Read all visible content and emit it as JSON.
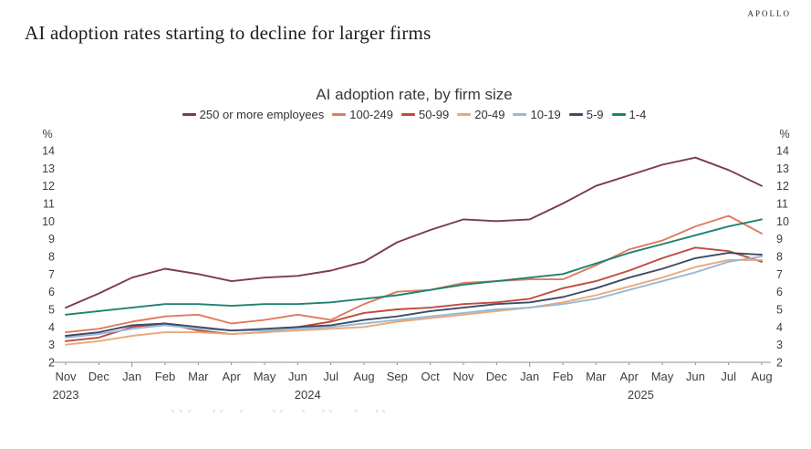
{
  "header": {
    "brand": "APOLLO",
    "title": "AI adoption rates starting to decline for larger firms"
  },
  "chart_data": {
    "type": "line",
    "title": "AI adoption rate, by firm size",
    "y_unit": "%",
    "ylim": [
      2,
      14
    ],
    "y_ticks": [
      14,
      13,
      12,
      11,
      10,
      9,
      8,
      7,
      6,
      5,
      4,
      3,
      2
    ],
    "grid": false,
    "legend_position": "top",
    "axis_color": "#909090",
    "text_color": "#3d3d3d",
    "x_tick_labels": [
      "Nov",
      "Dec",
      "Jan",
      "Feb",
      "Mar",
      "Apr",
      "May",
      "Jun",
      "Jul",
      "Aug",
      "Sep",
      "Oct",
      "Nov",
      "Dec",
      "Jan",
      "Feb",
      "Mar",
      "Apr",
      "May",
      "Jun",
      "Jul",
      "Aug"
    ],
    "year_labels": [
      {
        "label": "2023",
        "month_index": 0
      },
      {
        "label": "2024",
        "month_index": 7.3
      },
      {
        "label": "2025",
        "month_index": 17.35
      }
    ],
    "series": [
      {
        "name": "250 or more employees",
        "color": "#7a3b4f",
        "values": [
          5.1,
          5.9,
          6.8,
          7.3,
          7.0,
          6.6,
          6.8,
          6.9,
          7.2,
          7.7,
          8.8,
          9.5,
          10.1,
          10.0,
          10.1,
          11.0,
          12.0,
          12.6,
          13.2,
          13.6,
          12.9,
          12.0
        ]
      },
      {
        "name": "100-249",
        "color": "#e07b5d",
        "values": [
          3.7,
          3.9,
          4.3,
          4.6,
          4.7,
          4.2,
          4.4,
          4.7,
          4.4,
          5.3,
          6.0,
          6.1,
          6.5,
          6.6,
          6.7,
          6.7,
          7.5,
          8.4,
          8.9,
          9.7,
          10.3,
          9.3
        ]
      },
      {
        "name": "50-99",
        "color": "#c14a3d",
        "values": [
          3.2,
          3.4,
          4.0,
          4.2,
          3.8,
          3.6,
          3.7,
          4.0,
          4.3,
          4.8,
          5.0,
          5.1,
          5.3,
          5.4,
          5.6,
          6.2,
          6.6,
          7.2,
          7.9,
          8.5,
          8.3,
          7.7
        ]
      },
      {
        "name": "20-49",
        "color": "#e9a978",
        "values": [
          3.0,
          3.2,
          3.5,
          3.7,
          3.7,
          3.6,
          3.7,
          3.8,
          3.9,
          4.0,
          4.3,
          4.5,
          4.7,
          4.9,
          5.1,
          5.4,
          5.8,
          6.3,
          6.8,
          7.4,
          7.8,
          7.8
        ]
      },
      {
        "name": "10-19",
        "color": "#96b9d9",
        "values": [
          3.4,
          3.6,
          3.9,
          4.1,
          3.9,
          3.8,
          3.8,
          3.9,
          4.0,
          4.2,
          4.4,
          4.6,
          4.8,
          5.0,
          5.1,
          5.3,
          5.6,
          6.1,
          6.6,
          7.1,
          7.7,
          8.0
        ]
      },
      {
        "name": "5-9",
        "color": "#3c4c64",
        "values": [
          3.5,
          3.7,
          4.1,
          4.2,
          4.0,
          3.8,
          3.9,
          4.0,
          4.1,
          4.4,
          4.6,
          4.9,
          5.1,
          5.3,
          5.4,
          5.7,
          6.2,
          6.8,
          7.3,
          7.9,
          8.2,
          8.1
        ]
      },
      {
        "name": "1-4",
        "color": "#1e8170",
        "values": [
          4.7,
          4.9,
          5.1,
          5.3,
          5.3,
          5.2,
          5.3,
          5.3,
          5.4,
          5.6,
          5.8,
          6.1,
          6.4,
          6.6,
          6.8,
          7.0,
          7.6,
          8.2,
          8.7,
          9.2,
          9.7,
          10.1
        ]
      }
    ]
  }
}
